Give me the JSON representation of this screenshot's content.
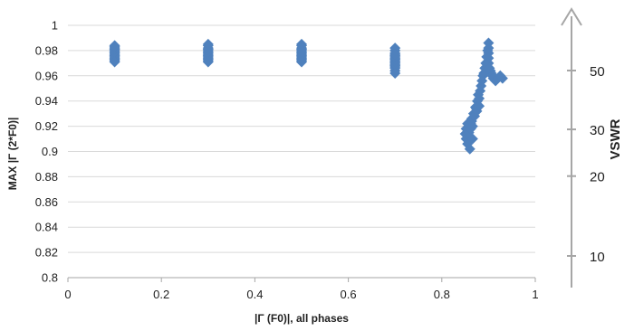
{
  "chart_data": {
    "type": "scatter",
    "title": "",
    "xlabel": "|Γ (F0)|, all phases",
    "ylabel": "MAX |Γ (2*F0)|",
    "xlim": [
      0,
      1
    ],
    "ylim": [
      0.8,
      1
    ],
    "x_ticks": [
      "0",
      "0.2",
      "0.4",
      "0.6",
      "0.8",
      "1"
    ],
    "y_ticks": [
      "0.8",
      "0.82",
      "0.84",
      "0.86",
      "0.88",
      "0.9",
      "0.92",
      "0.94",
      "0.96",
      "0.98",
      "1"
    ],
    "grid": "horizontal",
    "legend": "none",
    "marker": "diamond",
    "marker_color": "#4F81BD",
    "series": [
      {
        "x": [
          0.1,
          0.1,
          0.1,
          0.1,
          0.1,
          0.1,
          0.1,
          0.1,
          0.1,
          0.1,
          0.1,
          0.1,
          0.1,
          0.1,
          0.3,
          0.3,
          0.3,
          0.3,
          0.3,
          0.3,
          0.3,
          0.3,
          0.3,
          0.3,
          0.3,
          0.3,
          0.3,
          0.3,
          0.5,
          0.5,
          0.5,
          0.5,
          0.5,
          0.5,
          0.5,
          0.5,
          0.5,
          0.5,
          0.5,
          0.5,
          0.5,
          0.5,
          0.7,
          0.7,
          0.7,
          0.7,
          0.7,
          0.7,
          0.7,
          0.7,
          0.7,
          0.7,
          0.7,
          0.7,
          0.7,
          0.7,
          0.7,
          0.7,
          0.7,
          0.85,
          0.852,
          0.855,
          0.858,
          0.86,
          0.862,
          0.864,
          0.866,
          0.868,
          0.87,
          0.872,
          0.874,
          0.876,
          0.878,
          0.88,
          0.882,
          0.884,
          0.886,
          0.888,
          0.89,
          0.892,
          0.894,
          0.896,
          0.898,
          0.9,
          0.9,
          0.9,
          0.9,
          0.9,
          0.902,
          0.904,
          0.906,
          0.908,
          0.91,
          0.915,
          0.92,
          0.925,
          0.93,
          0.852,
          0.855,
          0.858,
          0.86,
          0.862,
          0.864,
          0.866,
          0.87,
          0.875,
          0.88
        ],
        "y": [
          0.972,
          0.974,
          0.976,
          0.978,
          0.98,
          0.982,
          0.984,
          0.973,
          0.975,
          0.977,
          0.979,
          0.981,
          0.971,
          0.983,
          0.972,
          0.974,
          0.976,
          0.978,
          0.98,
          0.982,
          0.984,
          0.973,
          0.975,
          0.977,
          0.979,
          0.981,
          0.971,
          0.985,
          0.972,
          0.974,
          0.976,
          0.978,
          0.98,
          0.982,
          0.984,
          0.973,
          0.975,
          0.977,
          0.979,
          0.981,
          0.971,
          0.985,
          0.964,
          0.966,
          0.968,
          0.97,
          0.972,
          0.974,
          0.976,
          0.978,
          0.98,
          0.982,
          0.967,
          0.969,
          0.971,
          0.973,
          0.975,
          0.977,
          0.962,
          0.914,
          0.91,
          0.906,
          0.918,
          0.902,
          0.922,
          0.926,
          0.91,
          0.93,
          0.928,
          0.935,
          0.934,
          0.94,
          0.945,
          0.942,
          0.948,
          0.952,
          0.956,
          0.96,
          0.962,
          0.966,
          0.97,
          0.975,
          0.98,
          0.986,
          0.982,
          0.978,
          0.974,
          0.97,
          0.966,
          0.964,
          0.962,
          0.96,
          0.958,
          0.956,
          0.958,
          0.96,
          0.958,
          0.918,
          0.922,
          0.915,
          0.92,
          0.918,
          0.924,
          0.92,
          0.928,
          0.932,
          0.936
        ]
      }
    ],
    "secondary_axis": {
      "label": "VSWR",
      "ticks": [
        {
          "label": "10",
          "value": 10
        },
        {
          "label": "20",
          "value": 20
        },
        {
          "label": "30",
          "value": 30
        },
        {
          "label": "50",
          "value": 50
        }
      ],
      "arrow": "up",
      "color": "#A6A6A6"
    },
    "colors": {
      "gridline": "#D9D9D9",
      "axis": "#A6A6A6"
    }
  }
}
